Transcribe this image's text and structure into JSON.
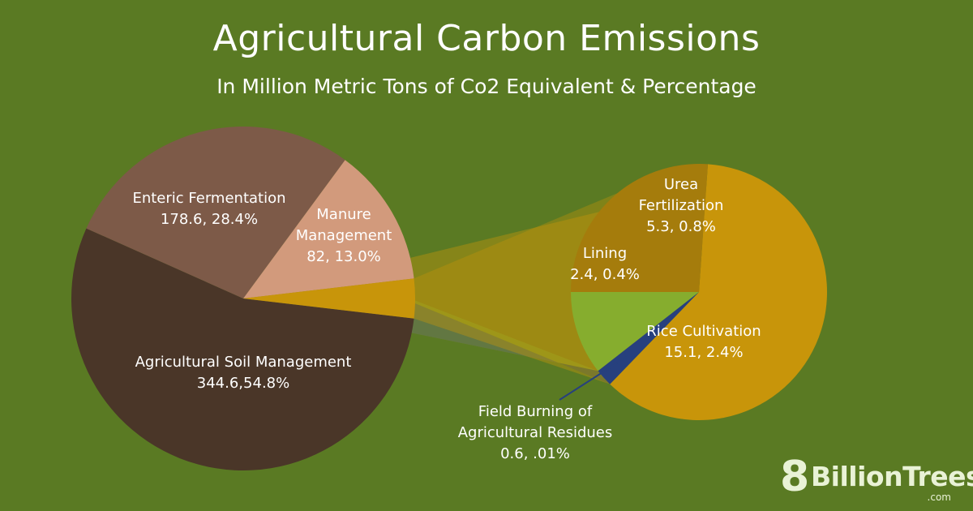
{
  "title": "Agricultural Carbon Emissions",
  "subtitle": "In Million Metric Tons of Co2 Equivalent & Percentage",
  "logo": {
    "number": "8",
    "brand": "BillionTrees",
    "tld": ".com"
  },
  "colors": {
    "background": "#5a7a23",
    "soil": "#4a3628",
    "enteric": "#7d5a48",
    "manure": "#d29a7c",
    "other_group": "#c8950a",
    "urea": "#a57c0c",
    "liming": "#86ad2e",
    "field_burning": "#27407e",
    "rice": "#c8950a",
    "connector": "#7e7f1a",
    "text": "#ffffff"
  },
  "chart_data": [
    {
      "type": "pie",
      "name": "main",
      "slices": [
        {
          "name": "Agricultural Soil Management",
          "value": 344.6,
          "percent": 54.8,
          "label_lines": [
            "Agricultural Soil Management",
            "344.6,54.8%"
          ],
          "color": "#4a3628"
        },
        {
          "name": "Enteric Fermentation",
          "value": 178.6,
          "percent": 28.4,
          "label_lines": [
            "Enteric Fermentation",
            "178.6, 28.4%"
          ],
          "color": "#7d5a48"
        },
        {
          "name": "Manure Management",
          "value": 82,
          "percent": 13.0,
          "label_lines": [
            "Manure",
            "Management",
            "82, 13.0%"
          ],
          "color": "#d29a7c"
        },
        {
          "name": "Other",
          "value": 23.4,
          "percent": 3.8,
          "label_lines": [],
          "color": "#c8950a"
        }
      ]
    },
    {
      "type": "pie",
      "name": "breakdown",
      "slices": [
        {
          "name": "Rice Cultivation",
          "value": 15.1,
          "percent": 2.4,
          "label_lines": [
            "Rice Cultivation",
            "15.1, 2.4%"
          ],
          "color": "#c8950a"
        },
        {
          "name": "Field Burning of Agricultural Residues",
          "value": 0.6,
          "percent": 0.01,
          "label_lines": [
            "Field Burning of",
            "Agricultural Residues",
            "0.6, .01%"
          ],
          "color": "#27407e"
        },
        {
          "name": "Liming",
          "value": 2.4,
          "percent": 0.4,
          "label_lines": [
            "Lining",
            "2.4, 0.4%"
          ],
          "color": "#86ad2e"
        },
        {
          "name": "Urea Fertilization",
          "value": 5.3,
          "percent": 0.8,
          "label_lines": [
            "Urea",
            "Fertilization",
            "5.3, 0.8%"
          ],
          "color": "#a57c0c"
        }
      ]
    }
  ]
}
